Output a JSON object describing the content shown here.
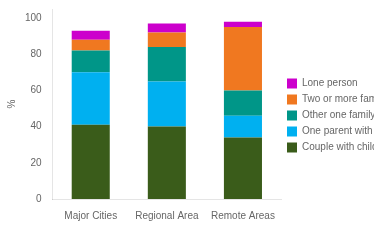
{
  "chart_data": {
    "type": "bar",
    "stacked": true,
    "ylabel": "%",
    "categories": [
      "Major Cities",
      "Regional Area",
      "Remote Areas"
    ],
    "series": [
      {
        "name": "Couple with children",
        "color": "#3a5c1a",
        "values": [
          41,
          40,
          34
        ]
      },
      {
        "name": "One parent with children",
        "color": "#00b0f0",
        "values": [
          29,
          25,
          12
        ]
      },
      {
        "name": "Other one family(a)",
        "color": "#009688",
        "values": [
          12,
          19,
          14
        ]
      },
      {
        "name": "Two or more families",
        "color": "#f07820",
        "values": [
          6,
          8,
          35
        ]
      },
      {
        "name": "Lone person",
        "color": "#cc00cc",
        "values": [
          5,
          5,
          3
        ]
      }
    ],
    "ylim": [
      0,
      105
    ],
    "yticks": [
      0,
      20,
      40,
      60,
      80,
      100
    ],
    "grid": false,
    "legend": "right"
  }
}
